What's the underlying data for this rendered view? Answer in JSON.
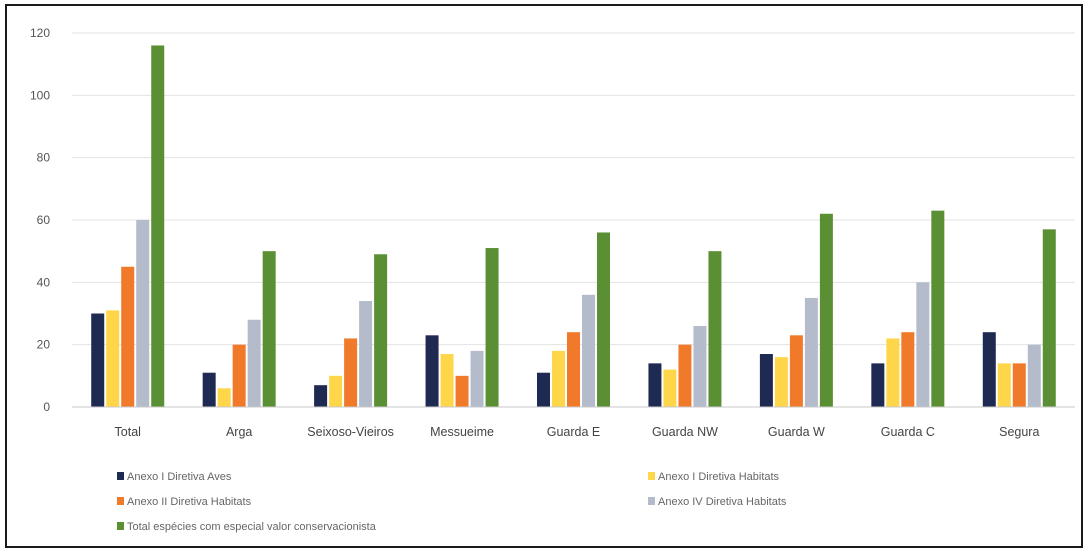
{
  "chart_data": {
    "type": "bar",
    "categories": [
      "Total",
      "Arga",
      "Seixoso-Vieiros",
      "Messueime",
      "Guarda E",
      "Guarda NW",
      "Guarda W",
      "Guarda C",
      "Segura"
    ],
    "series": [
      {
        "name": "Anexo I Diretiva Aves",
        "color": "#1f2a52",
        "values": [
          30,
          11,
          7,
          23,
          11,
          14,
          17,
          14,
          24
        ]
      },
      {
        "name": "Anexo I Diretiva Habitats",
        "color": "#ffd54a",
        "values": [
          31,
          6,
          10,
          17,
          18,
          12,
          16,
          22,
          14
        ]
      },
      {
        "name": "Anexo II Diretiva Habitats",
        "color": "#f07a2a",
        "values": [
          45,
          20,
          22,
          10,
          24,
          20,
          23,
          24,
          14
        ]
      },
      {
        "name": "Anexo IV Diretiva Habitats",
        "color": "#b4bccb",
        "values": [
          60,
          28,
          34,
          18,
          36,
          26,
          35,
          40,
          20
        ]
      },
      {
        "name": "Total espécies com especial valor conservacionista",
        "color": "#5b8f33",
        "values": [
          116,
          50,
          49,
          51,
          56,
          50,
          62,
          63,
          57
        ]
      }
    ],
    "ylim": [
      0,
      120
    ],
    "yticks": [
      0,
      20,
      40,
      60,
      80,
      100,
      120
    ],
    "grid": true,
    "legend_position": "bottom"
  }
}
